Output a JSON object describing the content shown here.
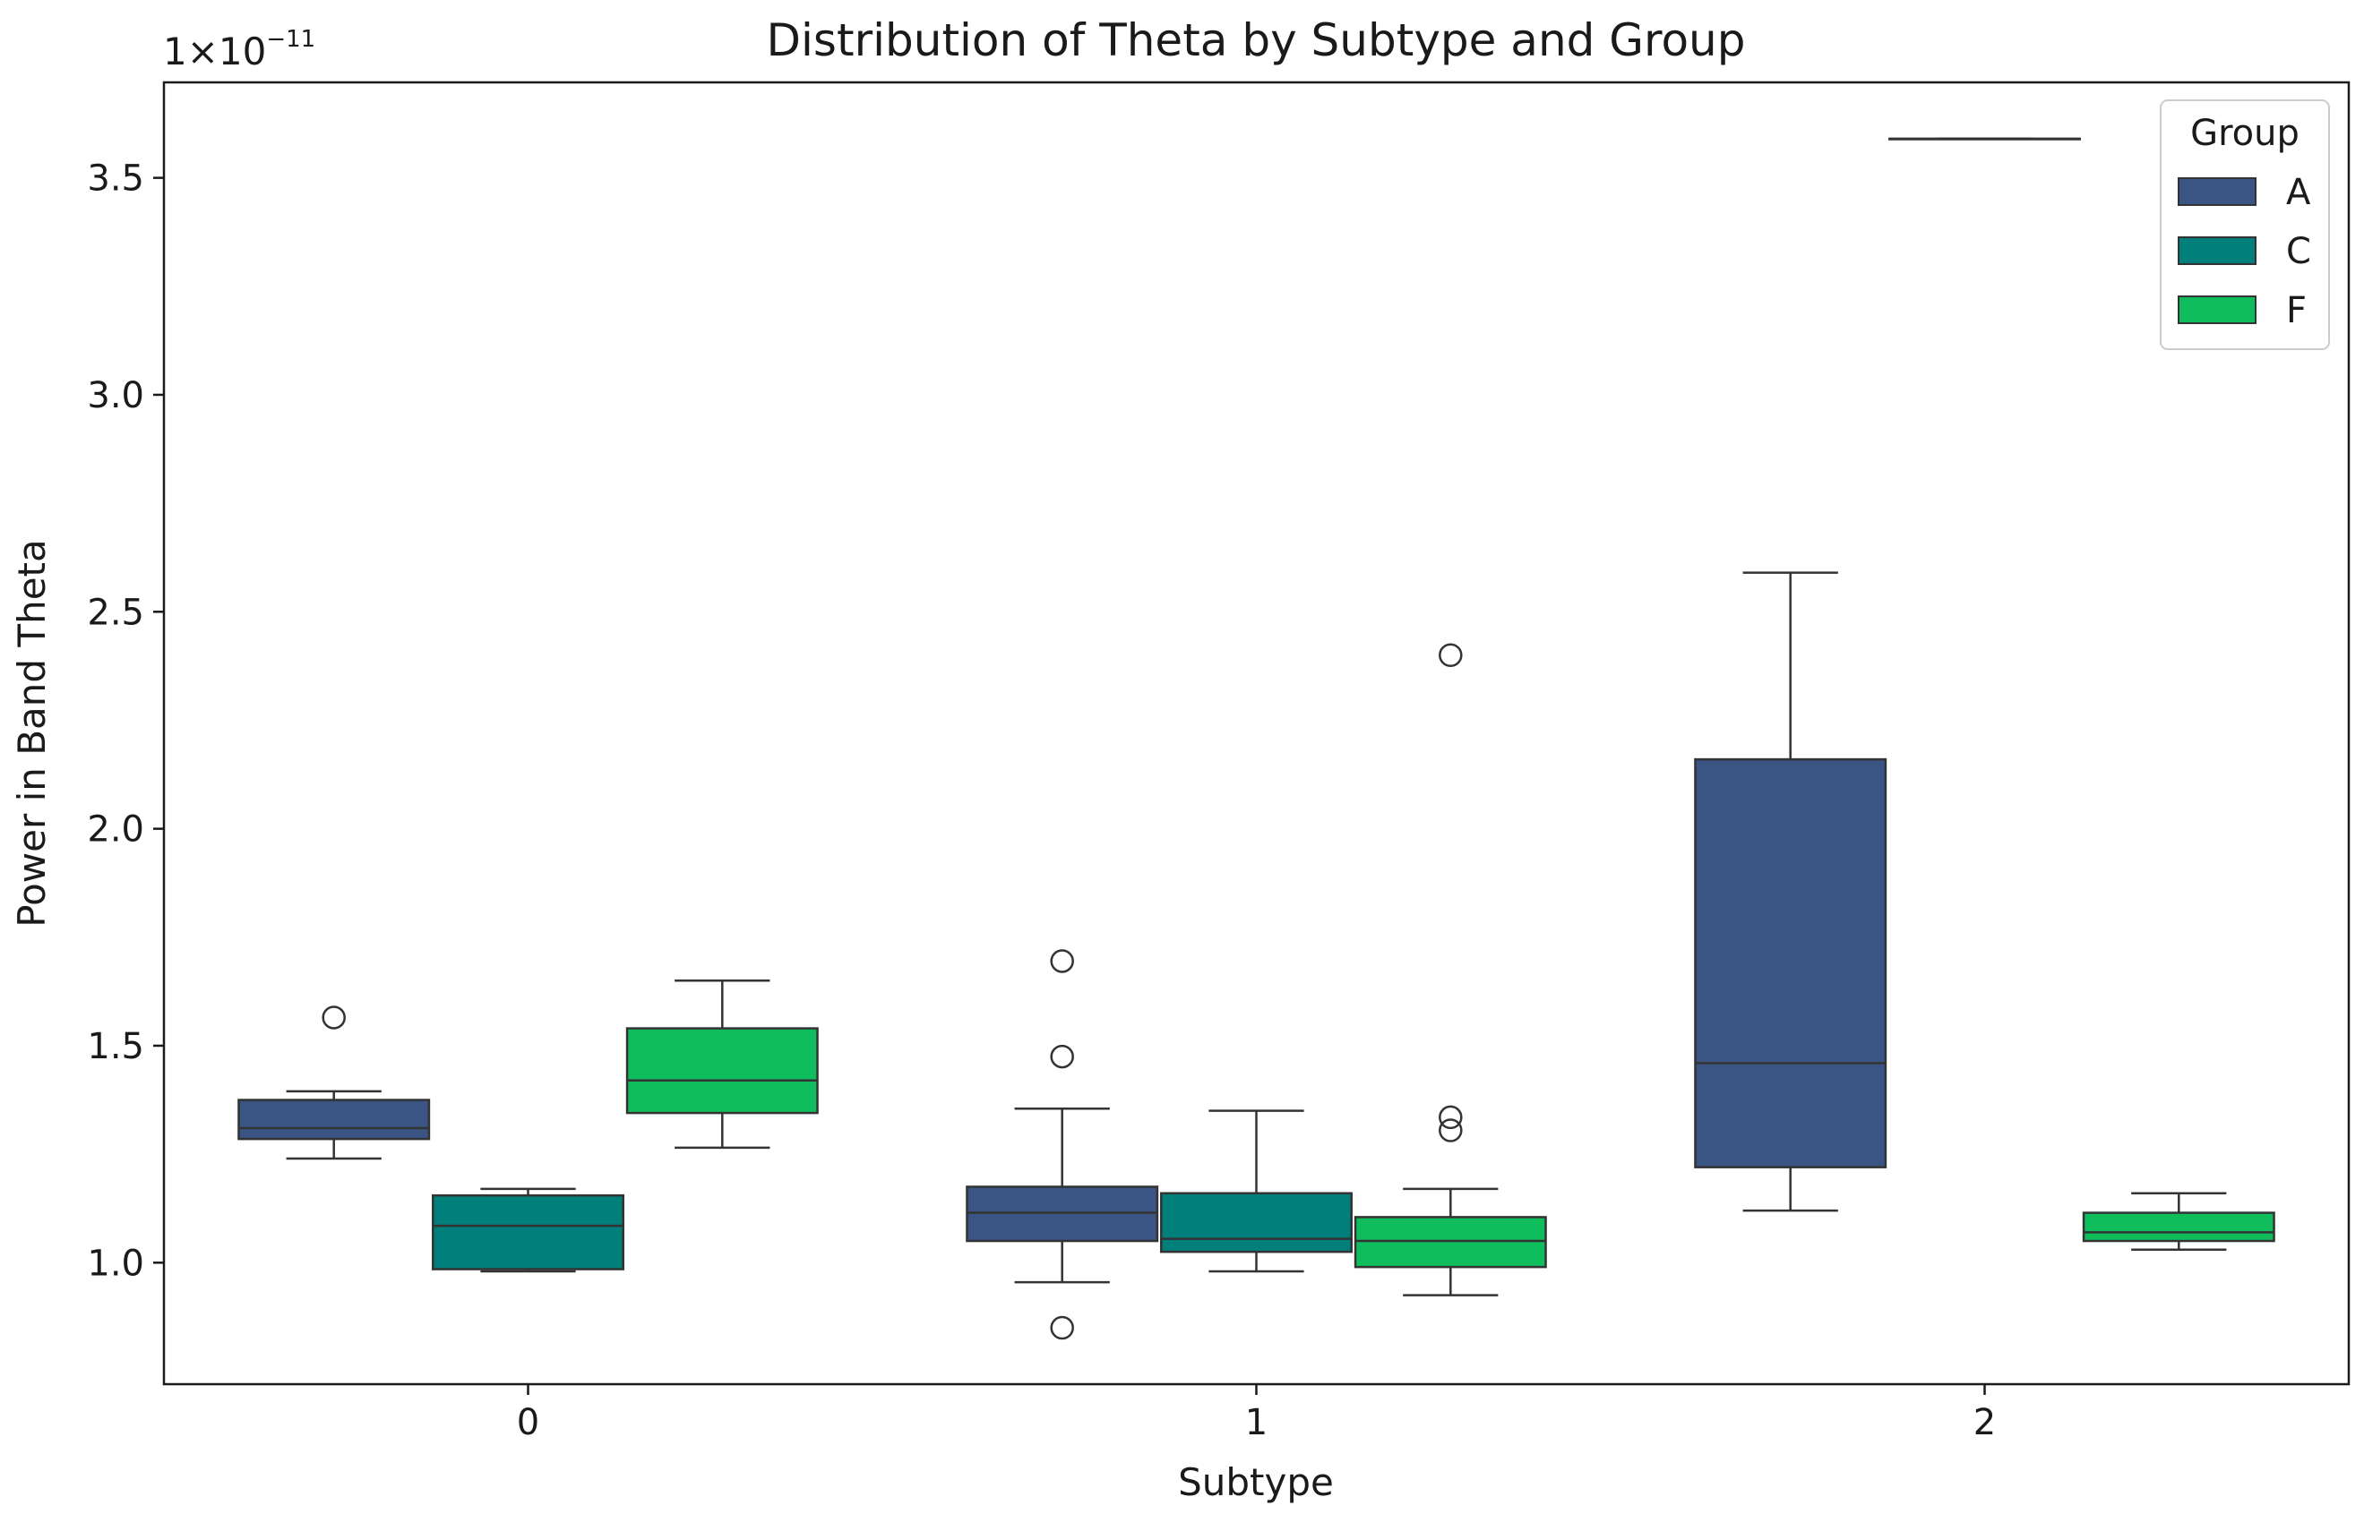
{
  "chart_data": {
    "type": "boxplot",
    "title": "Distribution of Theta by Subtype and Group",
    "xlabel": "Subtype",
    "ylabel": "Power in Band Theta",
    "y_scale_label": "1×10",
    "y_scale_exponent": "−11",
    "ylim": [
      0.72,
      3.72
    ],
    "yticks": [
      1.0,
      1.5,
      2.0,
      2.5,
      3.0,
      3.5
    ],
    "ytick_labels": [
      "1.0",
      "1.5",
      "2.0",
      "2.5",
      "3.0",
      "3.5"
    ],
    "categories": [
      "0",
      "1",
      "2"
    ],
    "legend": {
      "title": "Group",
      "position": "top-right",
      "entries": [
        {
          "label": "A",
          "color": "#3a5483"
        },
        {
          "label": "C",
          "color": "#017f7a"
        },
        {
          "label": "F",
          "color": "#0fbd5d"
        }
      ]
    },
    "series": [
      {
        "name": "A",
        "color": "#3a5483",
        "boxes": [
          {
            "category": "0",
            "whisker_low": 1.24,
            "q1": 1.285,
            "median": 1.31,
            "q3": 1.375,
            "whisker_high": 1.395,
            "outliers": [
              1.565
            ]
          },
          {
            "category": "1",
            "whisker_low": 0.955,
            "q1": 1.05,
            "median": 1.115,
            "q3": 1.175,
            "whisker_high": 1.355,
            "outliers": [
              0.85,
              1.475,
              1.695
            ]
          },
          {
            "category": "2",
            "whisker_low": 1.12,
            "q1": 1.22,
            "median": 1.46,
            "q3": 2.16,
            "whisker_high": 2.59,
            "outliers": []
          }
        ]
      },
      {
        "name": "C",
        "color": "#017f7a",
        "boxes": [
          {
            "category": "0",
            "whisker_low": 0.98,
            "q1": 0.985,
            "median": 1.085,
            "q3": 1.155,
            "whisker_high": 1.17,
            "outliers": []
          },
          {
            "category": "1",
            "whisker_low": 0.98,
            "q1": 1.025,
            "median": 1.055,
            "q3": 1.16,
            "whisker_high": 1.35,
            "outliers": []
          },
          {
            "category": "2",
            "whisker_low": 3.59,
            "q1": 3.59,
            "median": 3.59,
            "q3": 3.59,
            "whisker_high": 3.59,
            "outliers": []
          }
        ]
      },
      {
        "name": "F",
        "color": "#0fbd5d",
        "boxes": [
          {
            "category": "0",
            "whisker_low": 1.265,
            "q1": 1.345,
            "median": 1.42,
            "q3": 1.54,
            "whisker_high": 1.65,
            "outliers": []
          },
          {
            "category": "1",
            "whisker_low": 0.925,
            "q1": 0.99,
            "median": 1.05,
            "q3": 1.105,
            "whisker_high": 1.17,
            "outliers": [
              1.305,
              1.335,
              2.4
            ]
          },
          {
            "category": "2",
            "whisker_low": 1.03,
            "q1": 1.05,
            "median": 1.07,
            "q3": 1.115,
            "whisker_high": 1.16,
            "outliers": []
          }
        ]
      }
    ]
  }
}
